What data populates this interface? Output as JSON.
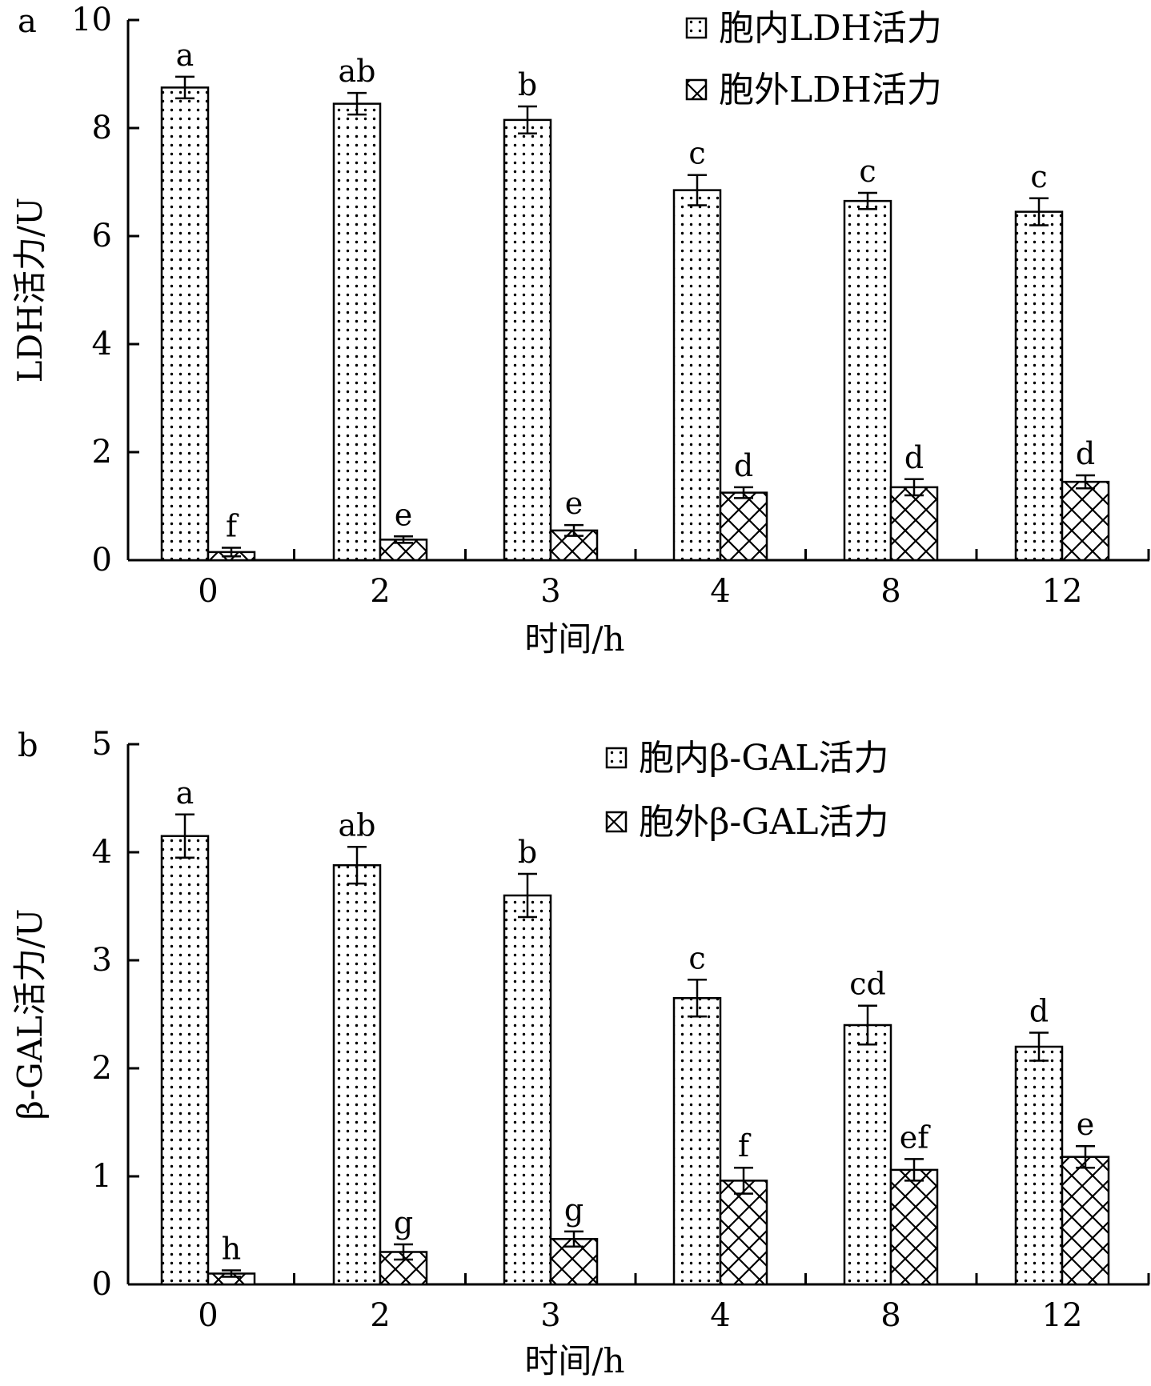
{
  "chart_data": [
    {
      "type": "bar",
      "panel_label": "a",
      "categories": [
        "0",
        "2",
        "3",
        "4",
        "8",
        "12"
      ],
      "xlabel": "时间/h",
      "ylabel": "LDH活力/U",
      "ylim": [
        0,
        10
      ],
      "yticks": [
        "0",
        "2",
        "4",
        "6",
        "8",
        "10"
      ],
      "grid": false,
      "legend_position": "top-right",
      "series": [
        {
          "name": "胞内LDH活力",
          "pattern": "dots",
          "values": [
            8.75,
            8.45,
            8.15,
            6.85,
            6.65,
            6.45
          ],
          "errors": [
            0.2,
            0.2,
            0.25,
            0.28,
            0.15,
            0.25
          ],
          "labels": [
            "a",
            "ab",
            "b",
            "c",
            "c",
            "c"
          ]
        },
        {
          "name": "胞外LDH活力",
          "pattern": "crosshatch",
          "values": [
            0.15,
            0.38,
            0.55,
            1.25,
            1.35,
            1.45
          ],
          "errors": [
            0.08,
            0.06,
            0.1,
            0.1,
            0.15,
            0.12
          ],
          "labels": [
            "f",
            "e",
            "e",
            "d",
            "d",
            "d"
          ]
        }
      ]
    },
    {
      "type": "bar",
      "panel_label": "b",
      "categories": [
        "0",
        "2",
        "3",
        "4",
        "8",
        "12"
      ],
      "xlabel": "时间/h",
      "ylabel": "β-GAL活力/U",
      "ylim": [
        0,
        5
      ],
      "yticks": [
        "0",
        "1",
        "2",
        "3",
        "4",
        "5"
      ],
      "grid": false,
      "legend_position": "top-right",
      "series": [
        {
          "name": "胞内β-GAL活力",
          "pattern": "dots",
          "values": [
            4.15,
            3.88,
            3.6,
            2.65,
            2.4,
            2.2
          ],
          "errors": [
            0.2,
            0.17,
            0.2,
            0.17,
            0.18,
            0.13
          ],
          "labels": [
            "a",
            "ab",
            "b",
            "c",
            "cd",
            "d"
          ]
        },
        {
          "name": "胞外β-GAL活力",
          "pattern": "crosshatch",
          "values": [
            0.1,
            0.3,
            0.42,
            0.96,
            1.06,
            1.18
          ],
          "errors": [
            0.03,
            0.07,
            0.07,
            0.12,
            0.1,
            0.1
          ],
          "labels": [
            "h",
            "g",
            "g",
            "f",
            "ef",
            "e"
          ]
        }
      ]
    }
  ]
}
